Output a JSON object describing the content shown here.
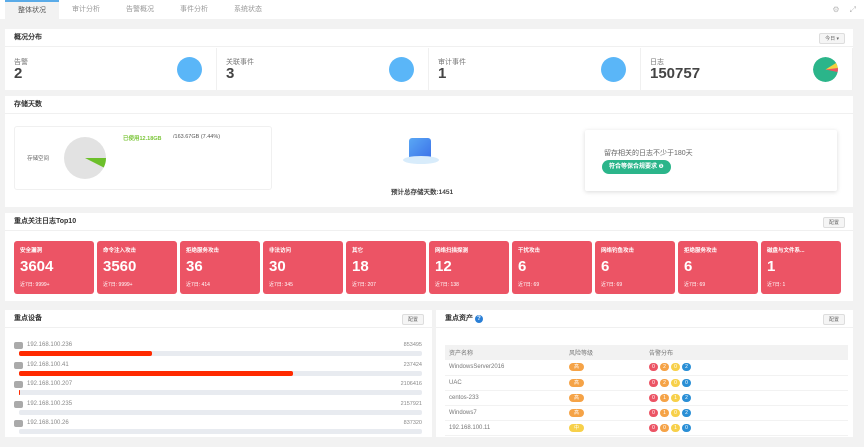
{
  "tabs": [
    "整体状况",
    "审计分析",
    "告警概况",
    "事件分析",
    "系统状态"
  ],
  "tools": {
    "settings_icon": "gear-icon",
    "expand_icon": "expand-icon"
  },
  "overview": {
    "title": "概况分布",
    "filter": "今日 ▾",
    "stats": [
      {
        "label": "告警",
        "value": "2"
      },
      {
        "label": "关联事件",
        "value": "3"
      },
      {
        "label": "审计事件",
        "value": "1"
      },
      {
        "label": "日志",
        "value": "150757"
      }
    ]
  },
  "storage": {
    "title": "存储天数",
    "space_label": "存储空间",
    "used": "已使用12.18GB",
    "total": " /163.67GB (7.44%)",
    "used_percent": 7.44,
    "estimate": "预计总存储天数:1451",
    "tip": "留存相关的日志不少于180天",
    "badge": "符合等保合规要求 ❶"
  },
  "top10": {
    "title": "重点关注日志Top10",
    "config": "配置",
    "items": [
      {
        "name": "安全漏洞",
        "value": "3604",
        "week": "近7日:  9999+"
      },
      {
        "name": "命令注入攻击",
        "value": "3560",
        "week": "近7日:  9999+"
      },
      {
        "name": "拒绝服务攻击",
        "value": "36",
        "week": "近7日:  414"
      },
      {
        "name": "非法访问",
        "value": "30",
        "week": "近7日:  345"
      },
      {
        "name": "其它",
        "value": "18",
        "week": "近7日:  207"
      },
      {
        "name": "网络扫描探测",
        "value": "12",
        "week": "近7日:  138"
      },
      {
        "name": "干扰攻击",
        "value": "6",
        "week": "近7日:  69"
      },
      {
        "name": "网络钓鱼攻击",
        "value": "6",
        "week": "近7日:  69"
      },
      {
        "name": "拒绝服务攻击",
        "value": "6",
        "week": "近7日:  69"
      },
      {
        "name": "磁盘与文件系...",
        "value": "1",
        "week": "近7日:  1"
      }
    ]
  },
  "devices": {
    "title": "重点设备",
    "config": "配置",
    "items": [
      {
        "ip": "192.168.100.236",
        "count": "853495",
        "percent": 33
      },
      {
        "ip": "192.168.100.41",
        "count": "237424",
        "percent": 68
      },
      {
        "ip": "192.168.100.207",
        "count": "2106416",
        "percent": 0.3
      },
      {
        "ip": "192.168.100.235",
        "count": "2157921",
        "percent": 0
      },
      {
        "ip": "192.168.100.26",
        "count": "837320",
        "percent": 0
      }
    ]
  },
  "assets": {
    "title": "重点资产",
    "config": "配置",
    "headers": [
      "资产名称",
      "风险等级",
      "告警分布"
    ],
    "rows": [
      {
        "name": "WindowsServer2016",
        "risk": "高",
        "dist": [
          "0",
          "2",
          "0",
          "2"
        ]
      },
      {
        "name": "UAC",
        "risk": "高",
        "dist": [
          "0",
          "2",
          "0",
          "0"
        ]
      },
      {
        "name": "centos-233",
        "risk": "高",
        "dist": [
          "0",
          "1",
          "1",
          "2"
        ]
      },
      {
        "name": "Windows7",
        "risk": "高",
        "dist": [
          "0",
          "1",
          "0",
          "2"
        ]
      },
      {
        "name": "192.168.100.11",
        "risk": "中",
        "dist": [
          "0",
          "0",
          "1",
          "0"
        ]
      }
    ]
  },
  "colors": {
    "accent": "#5ab6f8",
    "tile": "#ec5465",
    "bar": "#ff2a00",
    "green": "#2bb58a",
    "high": "#f5a347",
    "mid": "#f7d04a",
    "dist": [
      "#ec5465",
      "#f5a347",
      "#f7d04a",
      "#2a8fd6"
    ]
  }
}
